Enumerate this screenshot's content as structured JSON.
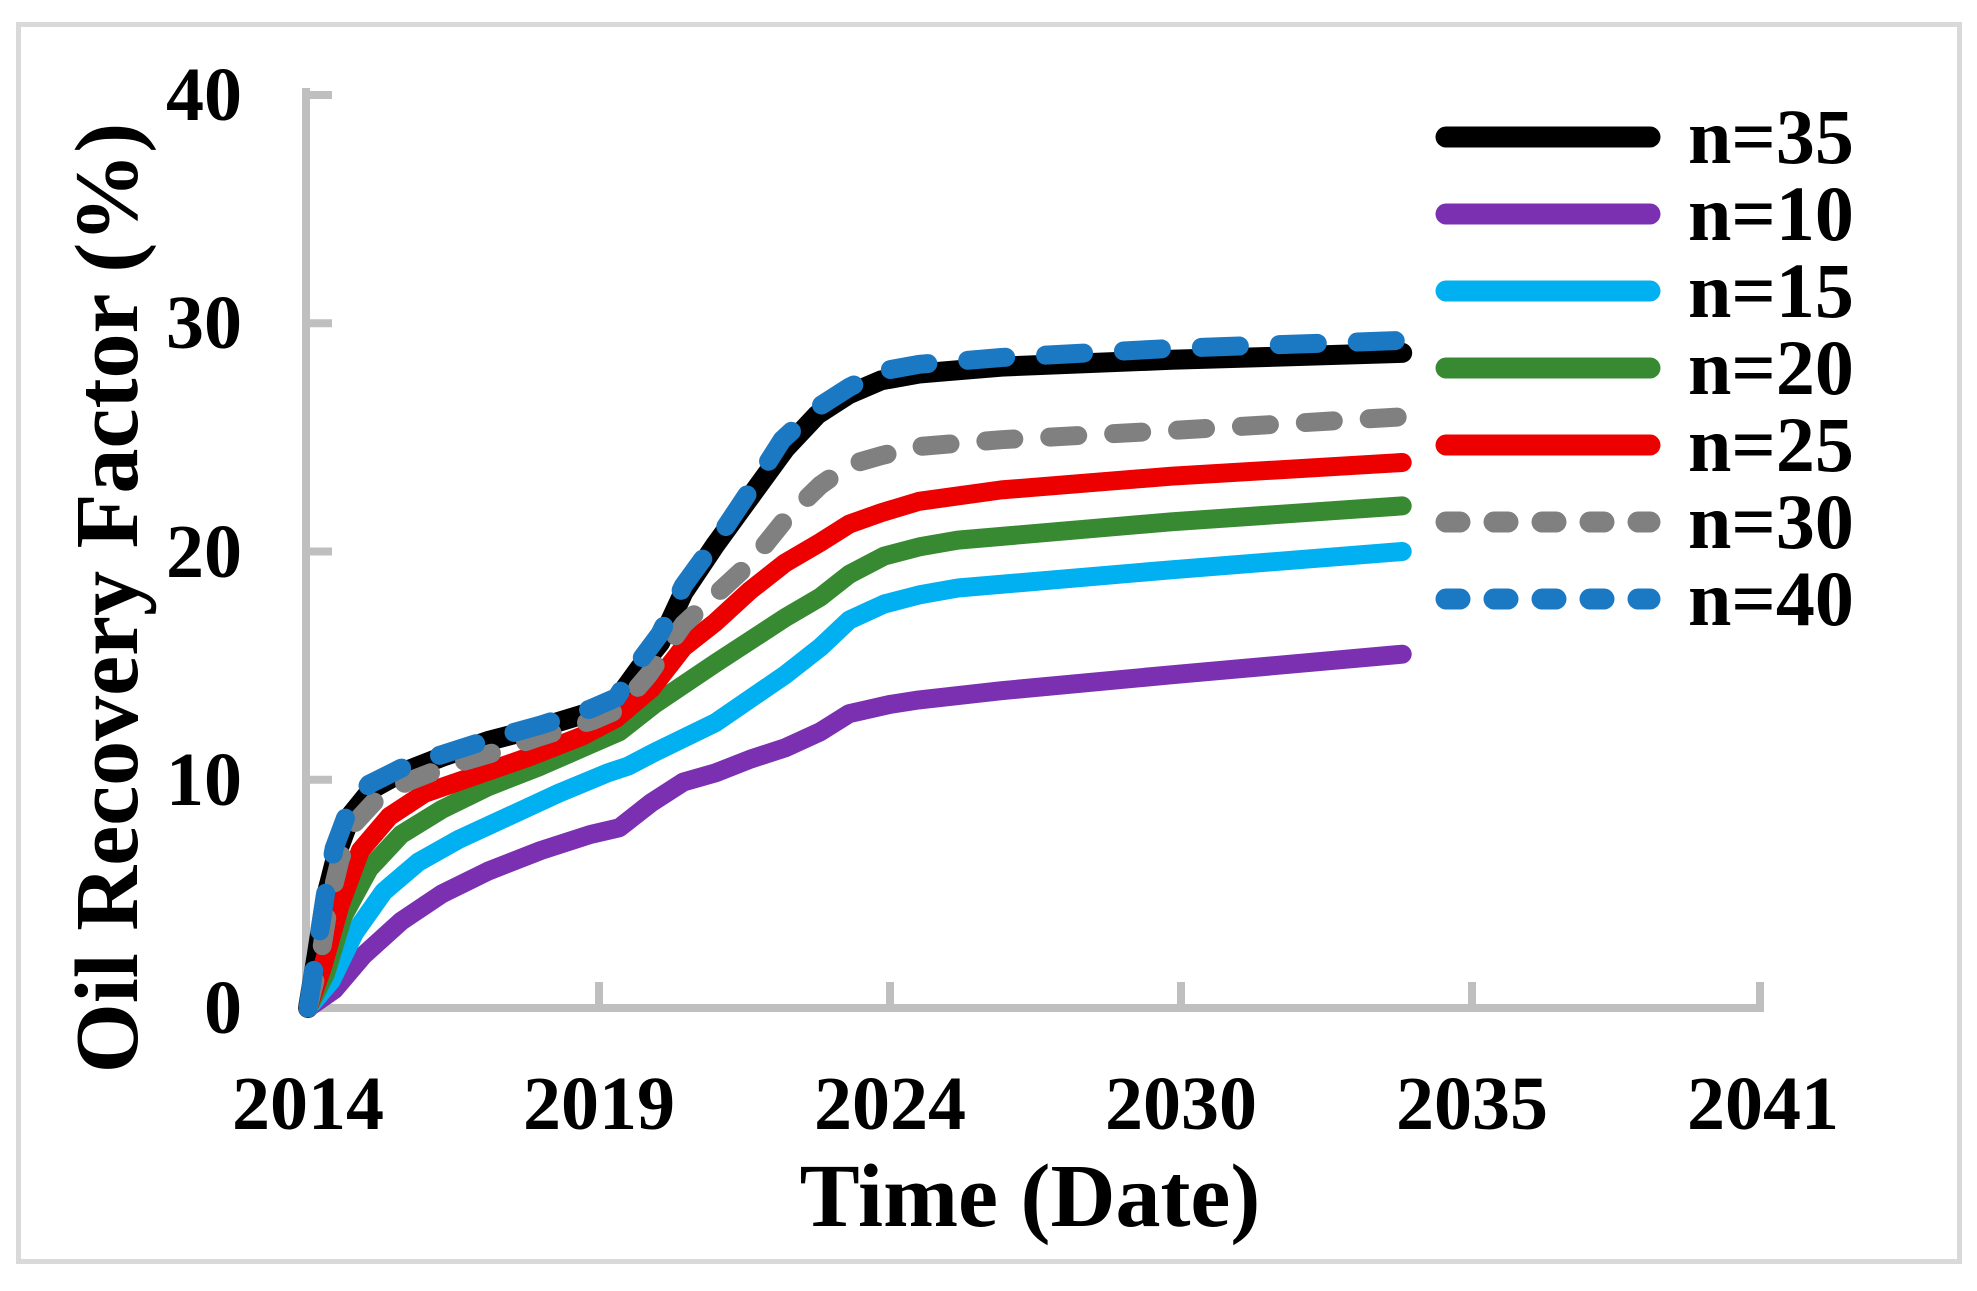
{
  "figure": {
    "background": "#ffffff",
    "border_color": "#D9D9D9",
    "axis_color": "#BFBFBF",
    "text_color": "#000000"
  },
  "chart_data": {
    "type": "line",
    "title": "",
    "xlabel": "Time (Date)",
    "ylabel": "Oil Recovery Factor (%)",
    "grid": false,
    "legend_position": "right",
    "x_axis": {
      "tick_labels": [
        "2014",
        "2019",
        "2024",
        "2030",
        "2035",
        "2041"
      ],
      "tick_years": [
        2014,
        2019,
        2024,
        2030,
        2035,
        2041
      ],
      "ticks_with_marks": [
        2019,
        2024,
        2030,
        2035,
        2041
      ]
    },
    "y_axis": {
      "tick_labels": [
        "0",
        "10",
        "20",
        "30",
        "40"
      ],
      "tick_values": [
        0,
        10,
        20,
        30,
        40
      ],
      "range": [
        0,
        40
      ],
      "unit": "%"
    },
    "series": [
      {
        "name": "n35",
        "label": "n=35",
        "color": "#000000",
        "dash": null,
        "width": 20,
        "points": [
          [
            2014.0,
            0
          ],
          [
            2014.15,
            2.3
          ],
          [
            2014.3,
            4.8
          ],
          [
            2014.5,
            6.8
          ],
          [
            2014.75,
            8.5
          ],
          [
            2015.1,
            9.6
          ],
          [
            2015.6,
            10.3
          ],
          [
            2016.3,
            11.0
          ],
          [
            2017.1,
            11.7
          ],
          [
            2018.0,
            12.3
          ],
          [
            2018.9,
            13.0
          ],
          [
            2019.3,
            13.5
          ],
          [
            2019.7,
            14.9
          ],
          [
            2020.05,
            16.0
          ],
          [
            2020.45,
            18.2
          ],
          [
            2021.0,
            20.3
          ],
          [
            2021.6,
            22.4
          ],
          [
            2022.2,
            24.5
          ],
          [
            2022.75,
            26.0
          ],
          [
            2023.3,
            26.9
          ],
          [
            2023.85,
            27.5
          ],
          [
            2024.6,
            27.8
          ],
          [
            2026.3,
            28.1
          ],
          [
            2029.8,
            28.4
          ],
          [
            2033.8,
            28.7
          ]
        ]
      },
      {
        "name": "n10",
        "label": "n=10",
        "color": "#7A30B0",
        "dash": null,
        "width": 19,
        "points": [
          [
            2014.0,
            0
          ],
          [
            2014.45,
            0.8
          ],
          [
            2014.95,
            2.3
          ],
          [
            2015.6,
            3.8
          ],
          [
            2016.3,
            5.0
          ],
          [
            2017.1,
            6.0
          ],
          [
            2018.0,
            6.9
          ],
          [
            2018.85,
            7.6
          ],
          [
            2019.35,
            7.9
          ],
          [
            2019.9,
            9.0
          ],
          [
            2020.45,
            9.9
          ],
          [
            2021.0,
            10.3
          ],
          [
            2021.6,
            10.9
          ],
          [
            2022.2,
            11.4
          ],
          [
            2022.8,
            12.1
          ],
          [
            2023.3,
            12.9
          ],
          [
            2024.0,
            13.3
          ],
          [
            2024.6,
            13.5
          ],
          [
            2026.3,
            13.9
          ],
          [
            2029.8,
            14.6
          ],
          [
            2033.8,
            15.5
          ]
        ]
      },
      {
        "name": "n15",
        "label": "n=15",
        "color": "#00B0F0",
        "dash": null,
        "width": 19,
        "points": [
          [
            2014.0,
            0
          ],
          [
            2014.4,
            1.2
          ],
          [
            2014.8,
            3.3
          ],
          [
            2015.3,
            5.1
          ],
          [
            2015.9,
            6.4
          ],
          [
            2016.6,
            7.4
          ],
          [
            2017.45,
            8.4
          ],
          [
            2018.3,
            9.4
          ],
          [
            2019.15,
            10.3
          ],
          [
            2019.5,
            10.6
          ],
          [
            2019.95,
            11.2
          ],
          [
            2021.0,
            12.5
          ],
          [
            2022.2,
            14.6
          ],
          [
            2022.8,
            15.8
          ],
          [
            2023.3,
            17.0
          ],
          [
            2023.9,
            17.7
          ],
          [
            2024.6,
            18.1
          ],
          [
            2025.4,
            18.4
          ],
          [
            2029.8,
            19.2
          ],
          [
            2033.8,
            20.0
          ]
        ]
      },
      {
        "name": "n20",
        "label": "n=20",
        "color": "#378A32",
        "dash": null,
        "width": 19,
        "points": [
          [
            2014.0,
            0
          ],
          [
            2014.3,
            1.5
          ],
          [
            2014.6,
            4.0
          ],
          [
            2015.05,
            6.1
          ],
          [
            2015.6,
            7.6
          ],
          [
            2016.3,
            8.7
          ],
          [
            2017.1,
            9.7
          ],
          [
            2018.0,
            10.6
          ],
          [
            2018.9,
            11.6
          ],
          [
            2019.35,
            12.1
          ],
          [
            2019.95,
            13.3
          ],
          [
            2021.0,
            15.1
          ],
          [
            2022.2,
            17.1
          ],
          [
            2022.8,
            18.0
          ],
          [
            2023.3,
            19.0
          ],
          [
            2023.9,
            19.8
          ],
          [
            2024.6,
            20.2
          ],
          [
            2025.4,
            20.5
          ],
          [
            2029.8,
            21.3
          ],
          [
            2033.8,
            22.0
          ]
        ]
      },
      {
        "name": "n25",
        "label": "n=25",
        "color": "#EC0000",
        "dash": null,
        "width": 19,
        "points": [
          [
            2014.0,
            0
          ],
          [
            2014.25,
            1.8
          ],
          [
            2014.55,
            4.5
          ],
          [
            2014.9,
            6.9
          ],
          [
            2015.4,
            8.4
          ],
          [
            2016.0,
            9.4
          ],
          [
            2016.9,
            10.2
          ],
          [
            2017.8,
            11.0
          ],
          [
            2018.7,
            11.9
          ],
          [
            2019.3,
            12.7
          ],
          [
            2019.9,
            14.0
          ],
          [
            2020.45,
            15.8
          ],
          [
            2021.0,
            16.9
          ],
          [
            2021.6,
            18.3
          ],
          [
            2022.2,
            19.5
          ],
          [
            2022.8,
            20.4
          ],
          [
            2023.3,
            21.2
          ],
          [
            2023.85,
            21.7
          ],
          [
            2024.6,
            22.2
          ],
          [
            2026.3,
            22.7
          ],
          [
            2029.8,
            23.3
          ],
          [
            2033.8,
            23.9
          ]
        ]
      },
      {
        "name": "n30",
        "label": "n=30",
        "color": "#808080",
        "dash": "28 36",
        "width": 19,
        "points": [
          [
            2014.0,
            0
          ],
          [
            2014.2,
            2.0
          ],
          [
            2014.35,
            4.4
          ],
          [
            2014.55,
            6.5
          ],
          [
            2014.8,
            8.1
          ],
          [
            2015.2,
            9.2
          ],
          [
            2015.7,
            9.9
          ],
          [
            2016.4,
            10.6
          ],
          [
            2017.2,
            11.2
          ],
          [
            2018.0,
            11.9
          ],
          [
            2018.9,
            12.6
          ],
          [
            2019.35,
            13.1
          ],
          [
            2019.85,
            14.6
          ],
          [
            2020.45,
            16.8
          ],
          [
            2021.0,
            18.1
          ],
          [
            2021.6,
            19.5
          ],
          [
            2022.2,
            21.4
          ],
          [
            2022.8,
            22.9
          ],
          [
            2023.3,
            23.8
          ],
          [
            2023.85,
            24.2
          ],
          [
            2024.6,
            24.6
          ],
          [
            2026.3,
            24.9
          ],
          [
            2029.8,
            25.3
          ],
          [
            2033.8,
            25.9
          ]
        ]
      },
      {
        "name": "n40",
        "label": "n=40",
        "color": "#1B78C2",
        "dash": "38 40",
        "width": 19,
        "points": [
          [
            2014.0,
            0
          ],
          [
            2014.15,
            2.5
          ],
          [
            2014.3,
            5.0
          ],
          [
            2014.45,
            7.0
          ],
          [
            2014.7,
            8.7
          ],
          [
            2015.05,
            9.8
          ],
          [
            2015.6,
            10.5
          ],
          [
            2016.3,
            11.1
          ],
          [
            2017.15,
            11.8
          ],
          [
            2018.0,
            12.4
          ],
          [
            2018.85,
            13.1
          ],
          [
            2019.3,
            13.6
          ],
          [
            2019.7,
            15.2
          ],
          [
            2020.05,
            16.4
          ],
          [
            2020.45,
            18.5
          ],
          [
            2021.05,
            20.6
          ],
          [
            2021.6,
            22.7
          ],
          [
            2022.15,
            24.9
          ],
          [
            2022.75,
            26.3
          ],
          [
            2023.3,
            27.2
          ],
          [
            2023.85,
            27.9
          ],
          [
            2024.6,
            28.2
          ],
          [
            2026.3,
            28.5
          ],
          [
            2029.8,
            28.9
          ],
          [
            2033.8,
            29.25
          ]
        ]
      }
    ]
  }
}
